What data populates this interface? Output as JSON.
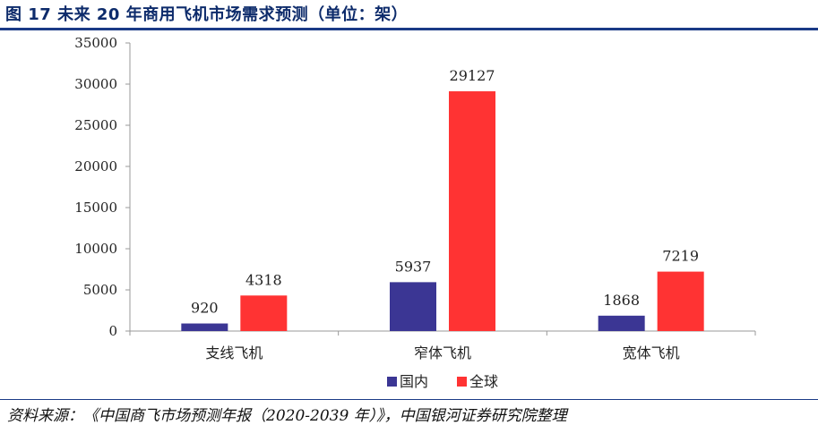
{
  "header": {
    "title": "图 17 未来 20 年商用飞机市场需求预测（单位：架）"
  },
  "footer": {
    "source": "资料来源：《中国商飞市场预测年报（2020-2039 年）》，中国银河证券研究院整理"
  },
  "chart_data": {
    "type": "bar",
    "title": "",
    "xlabel": "",
    "ylabel": "",
    "categories": [
      "支线飞机",
      "窄体飞机",
      "宽体飞机"
    ],
    "series": [
      {
        "name": "国内",
        "values": [
          920,
          5937,
          1868
        ],
        "color": "#3b3694"
      },
      {
        "name": "全球",
        "values": [
          4318,
          29127,
          7219
        ],
        "color": "#ff3333"
      }
    ],
    "ylim": [
      0,
      35000
    ],
    "yticks": [
      0,
      5000,
      10000,
      15000,
      20000,
      25000,
      30000,
      35000
    ],
    "grid": false,
    "legend_position": "bottom-center",
    "data_labels": true
  }
}
